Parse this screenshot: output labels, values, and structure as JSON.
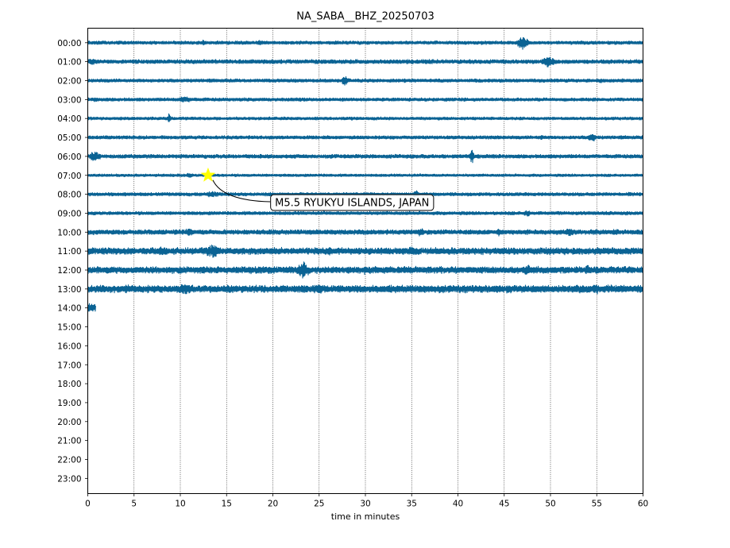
{
  "chart_data": {
    "type": "line",
    "title": "NA_SABA__BHZ_20250703",
    "xlabel": "time in minutes",
    "ylabel": "",
    "xlim": [
      0,
      60
    ],
    "x_ticks": [
      "0",
      "5",
      "10",
      "15",
      "20",
      "25",
      "30",
      "35",
      "40",
      "45",
      "50",
      "55",
      "60"
    ],
    "hour_labels": [
      "00:00",
      "01:00",
      "02:00",
      "03:00",
      "04:00",
      "05:00",
      "06:00",
      "07:00",
      "08:00",
      "09:00",
      "10:00",
      "11:00",
      "12:00",
      "13:00",
      "14:00",
      "15:00",
      "16:00",
      "17:00",
      "18:00",
      "19:00",
      "20:00",
      "21:00",
      "22:00",
      "23:00"
    ],
    "grid": "vertical dotted at each x tick",
    "trace_color": "#0b6394",
    "traces": [
      {
        "hour": "00:00",
        "end_minute": 60,
        "base_amp": 0.25,
        "bursts": [
          {
            "t": 47.0,
            "amp": 1.0,
            "w": 1.0
          },
          {
            "t": 12.5,
            "amp": 0.45,
            "w": 0.4
          },
          {
            "t": 18.5,
            "amp": 0.4,
            "w": 0.6
          }
        ]
      },
      {
        "hour": "01:00",
        "end_minute": 60,
        "base_amp": 0.3,
        "bursts": [
          {
            "t": 49.8,
            "amp": 0.75,
            "w": 1.4
          },
          {
            "t": 0.5,
            "amp": 0.5,
            "w": 1.0
          },
          {
            "t": 19.0,
            "amp": 0.35,
            "w": 1.5
          }
        ]
      },
      {
        "hour": "02:00",
        "end_minute": 60,
        "base_amp": 0.25,
        "bursts": [
          {
            "t": 27.8,
            "amp": 0.75,
            "w": 0.6
          },
          {
            "t": 55.5,
            "amp": 0.35,
            "w": 0.6
          }
        ]
      },
      {
        "hour": "03:00",
        "end_minute": 60,
        "base_amp": 0.25,
        "bursts": [
          {
            "t": 10.5,
            "amp": 0.45,
            "w": 1.5
          },
          {
            "t": 0.8,
            "amp": 0.35,
            "w": 0.8
          }
        ]
      },
      {
        "hour": "04:00",
        "end_minute": 60,
        "base_amp": 0.22,
        "bursts": [
          {
            "t": 8.8,
            "amp": 0.8,
            "w": 0.3
          },
          {
            "t": 28.5,
            "amp": 0.35,
            "w": 0.5
          }
        ]
      },
      {
        "hour": "05:00",
        "end_minute": 60,
        "base_amp": 0.25,
        "bursts": [
          {
            "t": 54.5,
            "amp": 0.7,
            "w": 0.8
          },
          {
            "t": 49.0,
            "amp": 0.35,
            "w": 0.8
          }
        ]
      },
      {
        "hour": "06:00",
        "end_minute": 60,
        "base_amp": 0.28,
        "bursts": [
          {
            "t": 41.5,
            "amp": 1.1,
            "w": 0.4
          },
          {
            "t": 0.8,
            "amp": 0.7,
            "w": 1.2
          }
        ]
      },
      {
        "hour": "07:00",
        "end_minute": 60,
        "base_amp": 0.2,
        "bursts": [
          {
            "t": 11.0,
            "amp": 0.35,
            "w": 0.8
          }
        ]
      },
      {
        "hour": "08:00",
        "end_minute": 60,
        "base_amp": 0.25,
        "bursts": [
          {
            "t": 13.5,
            "amp": 0.45,
            "w": 1.5
          },
          {
            "t": 35.5,
            "amp": 0.6,
            "w": 0.6
          },
          {
            "t": 58.5,
            "amp": 0.4,
            "w": 0.5
          }
        ]
      },
      {
        "hour": "09:00",
        "end_minute": 60,
        "base_amp": 0.25,
        "bursts": [
          {
            "t": 47.5,
            "amp": 0.5,
            "w": 0.8
          }
        ]
      },
      {
        "hour": "10:00",
        "end_minute": 60,
        "base_amp": 0.35,
        "bursts": [
          {
            "t": 11.0,
            "amp": 0.6,
            "w": 1.0
          },
          {
            "t": 36.0,
            "amp": 0.6,
            "w": 0.8
          },
          {
            "t": 44.5,
            "amp": 0.55,
            "w": 0.8
          },
          {
            "t": 52.0,
            "amp": 0.6,
            "w": 1.0
          },
          {
            "t": 57.0,
            "amp": 0.55,
            "w": 0.8
          }
        ]
      },
      {
        "hour": "11:00",
        "end_minute": 60,
        "base_amp": 0.5,
        "bursts": [
          {
            "t": 13.5,
            "amp": 1.0,
            "w": 1.5
          },
          {
            "t": 8.0,
            "amp": 0.7,
            "w": 1.0
          },
          {
            "t": 26.0,
            "amp": 0.7,
            "w": 1.0
          },
          {
            "t": 35.0,
            "amp": 0.7,
            "w": 1.0
          }
        ]
      },
      {
        "hour": "12:00",
        "end_minute": 60,
        "base_amp": 0.5,
        "bursts": [
          {
            "t": 23.3,
            "amp": 1.25,
            "w": 1.2
          },
          {
            "t": 30.0,
            "amp": 0.75,
            "w": 0.5
          },
          {
            "t": 47.5,
            "amp": 0.75,
            "w": 1.0
          },
          {
            "t": 54.0,
            "amp": 0.7,
            "w": 0.8
          }
        ]
      },
      {
        "hour": "13:00",
        "end_minute": 60,
        "base_amp": 0.55,
        "bursts": [
          {
            "t": 10.5,
            "amp": 0.8,
            "w": 1.5
          },
          {
            "t": 25.0,
            "amp": 0.75,
            "w": 1.0
          },
          {
            "t": 55.0,
            "amp": 0.75,
            "w": 0.8
          },
          {
            "t": 6.5,
            "amp": 0.65,
            "w": 0.6
          }
        ]
      },
      {
        "hour": "14:00",
        "end_minute": 0.85,
        "base_amp": 0.65,
        "bursts": []
      }
    ],
    "event_marker": {
      "hour": "07:00",
      "minute": 13.0,
      "color": "#ffff00"
    },
    "annotation": {
      "text": "M5.5 RYUKYU ISLANDS, JAPAN",
      "hour": "08:25",
      "minute": 19.2
    }
  }
}
